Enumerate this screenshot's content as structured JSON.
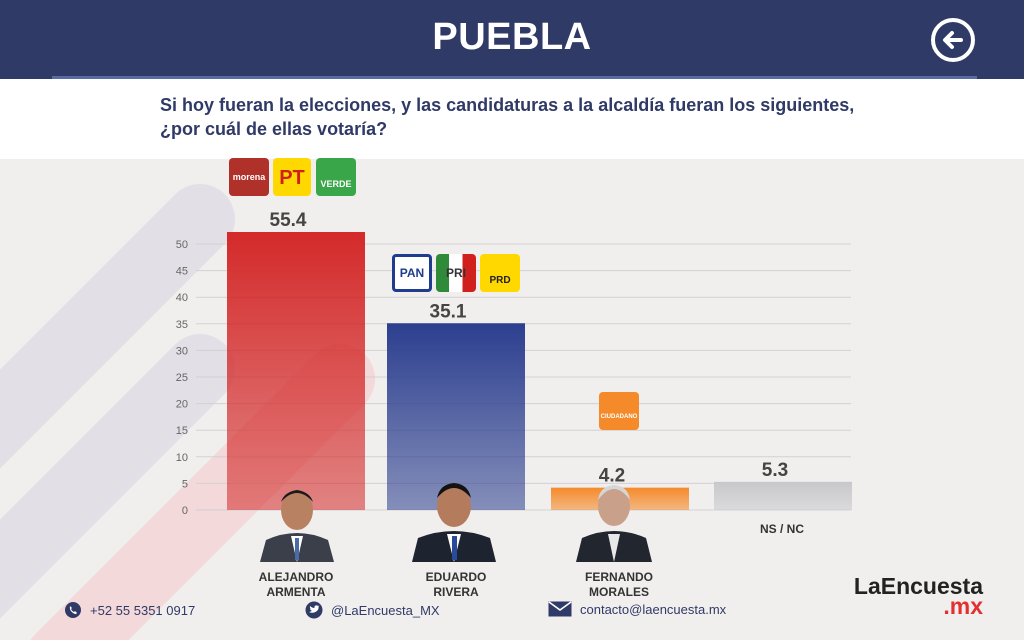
{
  "header": {
    "title": "PUEBLA"
  },
  "question": {
    "line1": "Si hoy fueran la elecciones, y las candidaturas a la alcaldía fueran los siguientes,",
    "line2": "¿por cuál de ellas votaría?"
  },
  "chart_data": {
    "type": "bar",
    "categories": [
      "ALEJANDRO ARMENTA",
      "EDUARDO RIVERA",
      "FERNANDO MORALES",
      "NS / NC"
    ],
    "values": [
      55.4,
      35.1,
      4.2,
      5.3
    ],
    "value_labels": [
      "55.4",
      "35.1",
      "4.2",
      "5.3"
    ],
    "yticks": [
      0,
      5,
      10,
      15,
      20,
      25,
      30,
      35,
      40,
      45,
      50
    ],
    "ylim": [
      0,
      50
    ],
    "grid": true,
    "colors": [
      "#d42a2a",
      "#2c3f8f",
      "#f58a2a",
      "#c8c8cc"
    ]
  },
  "candidates": [
    {
      "line1": "ALEJANDRO",
      "line2": "ARMENTA"
    },
    {
      "line1": "EDUARDO",
      "line2": "RIVERA"
    },
    {
      "line1": "FERNANDO",
      "line2": "MORALES"
    },
    {
      "line1": "NS / NC",
      "line2": ""
    }
  ],
  "party_logos": {
    "morena": "morena",
    "pt": "PT",
    "verde": "VERDE",
    "pan": "PAN",
    "pri": "PRI",
    "prd": "PRD",
    "mc": "CIUDADANO"
  },
  "footer": {
    "phone": "+52 55 5351 0917",
    "twitter": "@LaEncuesta_MX",
    "email": "contacto@laencuesta.mx"
  },
  "brand": {
    "name": "LaEncuesta",
    "suffix": ".mx"
  }
}
